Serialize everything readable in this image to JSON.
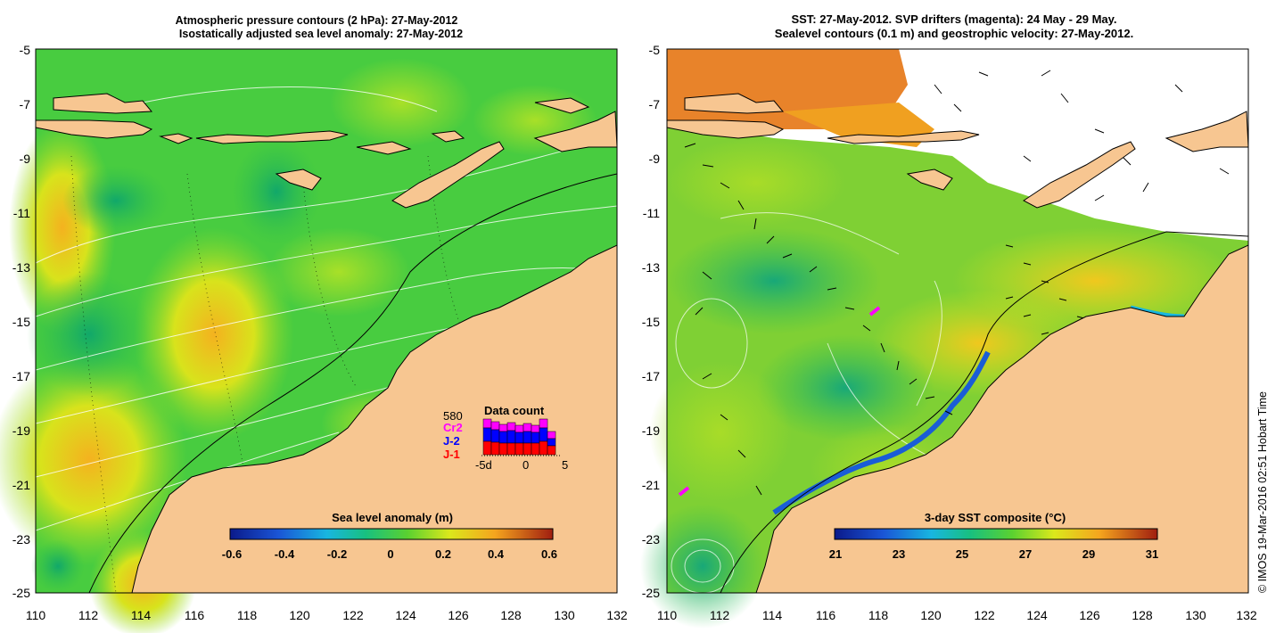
{
  "left_panel": {
    "title_line1": "Atmospheric pressure contours (2 hPa): 27-May-2012",
    "title_line2": "Isostatically adjusted sea level anomaly: 27-May-2012",
    "y_ticks": [
      "-5",
      "-7",
      "-9",
      "-11",
      "-13",
      "-15",
      "-17",
      "-19",
      "-21",
      "-23",
      "-25"
    ],
    "x_ticks": [
      "110",
      "112",
      "114",
      "116",
      "118",
      "120",
      "122",
      "124",
      "126",
      "128",
      "130",
      "132"
    ],
    "colorbar": {
      "title": "Sea level anomaly (m)",
      "labels": [
        "-0.6",
        "-0.4",
        "-0.2",
        "0",
        "0.2",
        "0.4",
        "0.6"
      ],
      "range": [
        -0.6,
        0.6
      ]
    },
    "data_count": {
      "title": "Data count",
      "max_label": "580",
      "series_labels": [
        "Cr2",
        "J-2",
        "J-1"
      ],
      "axis_labels": [
        "-5d",
        "0",
        "5"
      ],
      "colors": {
        "Cr2": "#ff00ff",
        "J-2": "#0000ff",
        "J-1": "#ff0000"
      }
    }
  },
  "right_panel": {
    "title_line1": "SST: 27-May-2012. SVP drifters (magenta): 24 May - 29 May.",
    "title_line2": "Sealevel contours (0.1 m) and geostrophic velocity: 27-May-2012.",
    "y_ticks": [
      "-5",
      "-7",
      "-9",
      "-11",
      "-13",
      "-15",
      "-17",
      "-19",
      "-21",
      "-23",
      "-25"
    ],
    "x_ticks": [
      "110",
      "112",
      "114",
      "116",
      "118",
      "120",
      "122",
      "124",
      "126",
      "128",
      "130",
      "132"
    ],
    "colorbar": {
      "title": "3-day SST composite (°C)",
      "labels": [
        "21",
        "23",
        "25",
        "27",
        "29",
        "31"
      ],
      "range": [
        21,
        31
      ]
    }
  },
  "credit": "© IMOS 19-Mar-2016 02:51 Hobart Time",
  "colors": {
    "land": "#f7c691",
    "sea_green": "#39c94a",
    "sea_yellow": "#c8e61e",
    "warm_orange": "#f09a1e"
  }
}
